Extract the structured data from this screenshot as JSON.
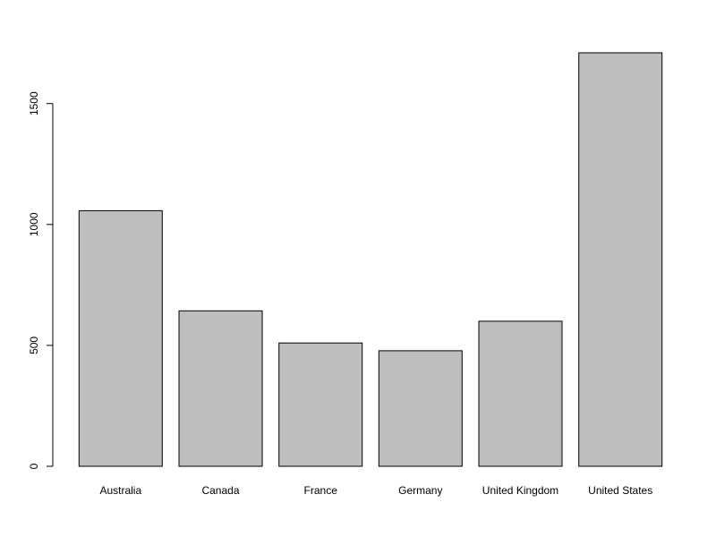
{
  "chart_data": {
    "type": "bar",
    "categories": [
      "Australia",
      "Canada",
      "France",
      "Germany",
      "United Kingdom",
      "United States"
    ],
    "values": [
      1057,
      643,
      510,
      478,
      600,
      1710
    ],
    "title": "",
    "xlabel": "",
    "ylabel": "",
    "ylim": [
      0,
      1710
    ],
    "y_ticks": [
      0,
      500,
      1000,
      1500
    ],
    "grid": false,
    "legend": "none",
    "colors": {
      "bar_fill": "#bebebe",
      "bar_stroke": "#000000",
      "background": "#ffffff"
    }
  }
}
